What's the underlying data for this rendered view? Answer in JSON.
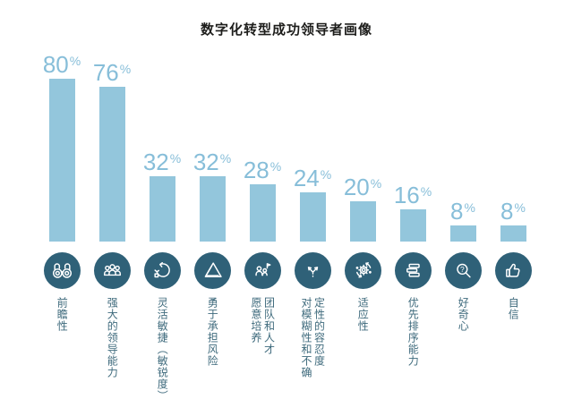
{
  "title": "数字化转型成功领导者画像",
  "colors": {
    "bar_fill": "#93c6dc",
    "value_text": "#87bed9",
    "icon_circle": "#2f6178",
    "label_text": "#3e6a7c",
    "title_text": "#1d1d1b",
    "background": "#ffffff"
  },
  "chart_data": {
    "type": "bar",
    "title": "数字化转型成功领导者画像",
    "unit": "%",
    "percent_sign": "%",
    "ylim": [
      0,
      100
    ],
    "grid": false,
    "legend": "none",
    "value_labels_position": "above-bar",
    "category_labels_orientation": "vertical",
    "categories": [
      "前瞻性",
      "强大的领导能力",
      "灵活敏捷（敏锐度）",
      "勇于承担风险",
      "愿意培养团队和人才",
      "对模糊性和不确定性的容忍度",
      "适应性",
      "优先排序能力",
      "好奇心",
      "自信"
    ],
    "values": [
      80,
      76,
      32,
      32,
      28,
      24,
      20,
      16,
      8,
      8
    ],
    "bars": [
      {
        "name": "前瞻性",
        "display": "前瞻性",
        "value": 80,
        "icon": "binoculars-icon"
      },
      {
        "name": "强大的领导能力",
        "display": "强大的领导能力",
        "value": 76,
        "icon": "team-icon"
      },
      {
        "name": "灵活敏捷（敏锐度）",
        "display": "灵活敏捷（敏锐度）",
        "value": 32,
        "icon": "agile-cycle-icon"
      },
      {
        "name": "勇于承担风险",
        "display": "勇于承担风险",
        "value": 32,
        "icon": "warning-triangle-icon"
      },
      {
        "name": "愿意培养团队和人才",
        "display": "愿意培养\n团队和人才",
        "value": 28,
        "icon": "talent-development-icon"
      },
      {
        "name": "对模糊性和不确定性的容忍度",
        "display": "对模糊性和不确\n定性的容忍度",
        "value": 24,
        "icon": "diverging-arrows-icon"
      },
      {
        "name": "适应性",
        "display": "适应性",
        "value": 20,
        "icon": "gear-sync-icon"
      },
      {
        "name": "优先排序能力",
        "display": "优先排序能力",
        "value": 16,
        "icon": "stacked-priorities-icon"
      },
      {
        "name": "好奇心",
        "display": "好奇心",
        "value": 8,
        "icon": "magnifier-question-icon"
      },
      {
        "name": "自信",
        "display": "自信",
        "value": 8,
        "icon": "thumbs-up-icon"
      }
    ]
  }
}
